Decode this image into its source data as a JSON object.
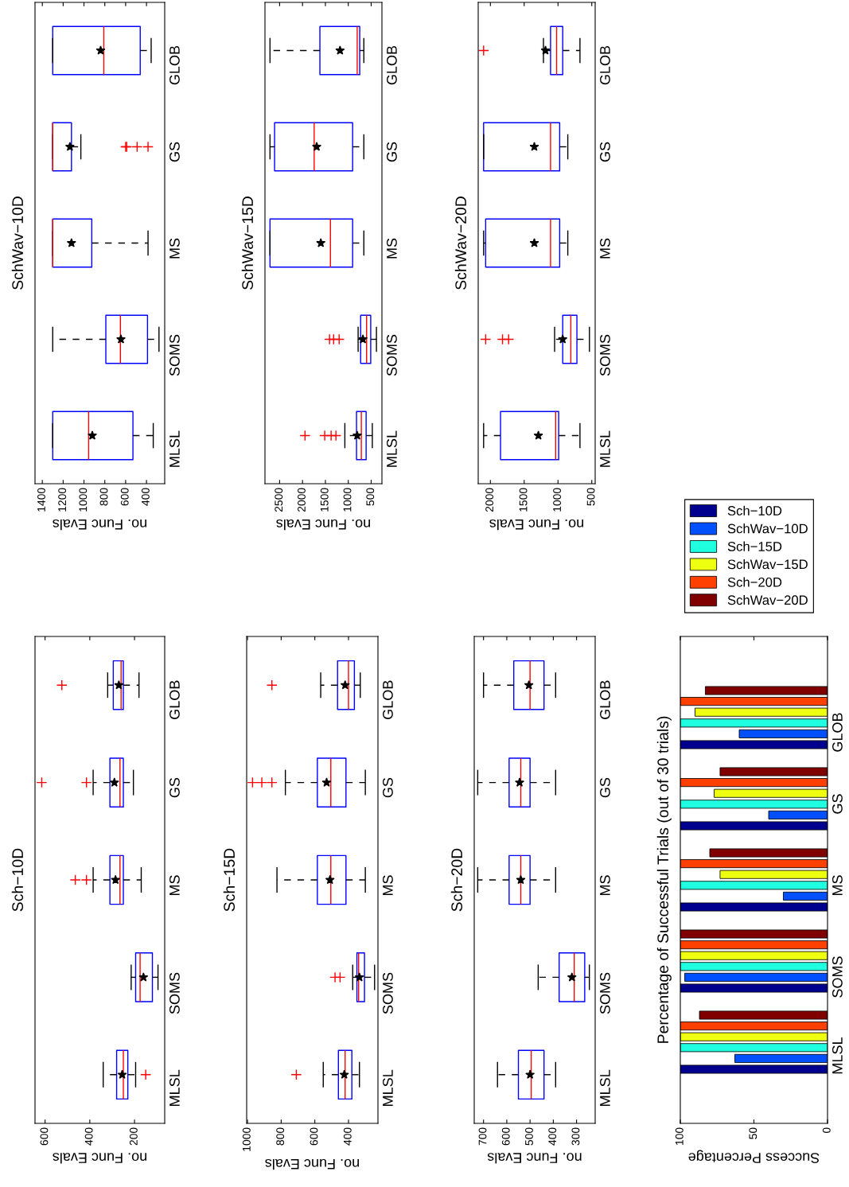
{
  "chart_data": [
    {
      "type": "box",
      "title": "Sch−10D",
      "xlabel": "no. Func Evals",
      "orientation": "horizontal",
      "categories": [
        "GLOB",
        "GS",
        "MS",
        "SOMS",
        "MLSL"
      ],
      "xlim": [
        645,
        65
      ],
      "xticks": [
        600,
        400,
        200
      ],
      "boxes": [
        {
          "low": 180,
          "q1": 250,
          "median": 260,
          "q3": 295,
          "high": 320,
          "mean": 270,
          "outliers": [
            525
          ]
        },
        {
          "low": 205,
          "q1": 250,
          "median": 265,
          "q3": 310,
          "high": 385,
          "mean": 290,
          "outliers": [
            415,
            615
          ]
        },
        {
          "low": 170,
          "q1": 250,
          "median": 265,
          "q3": 310,
          "high": 385,
          "mean": 285,
          "outliers": [
            415,
            465
          ]
        },
        {
          "low": 95,
          "q1": 120,
          "median": 175,
          "q3": 195,
          "high": 215,
          "mean": 160
        },
        {
          "low": 195,
          "q1": 230,
          "median": 250,
          "q3": 280,
          "high": 340,
          "mean": 255,
          "outliers": [
            150
          ]
        }
      ]
    },
    {
      "type": "box",
      "title": "Sch−15D",
      "xlabel": "no. Func Evals",
      "orientation": "horizontal",
      "categories": [
        "GLOB",
        "GS",
        "MS",
        "SOMS",
        "MLSL"
      ],
      "xlim": [
        1005,
        225
      ],
      "xticks": [
        1000,
        800,
        600,
        400
      ],
      "boxes": [
        {
          "low": 330,
          "q1": 365,
          "median": 400,
          "q3": 465,
          "high": 565,
          "mean": 420,
          "outliers": [
            855
          ]
        },
        {
          "low": 300,
          "q1": 415,
          "median": 505,
          "q3": 585,
          "high": 775,
          "mean": 530,
          "outliers": [
            855,
            915,
            970
          ]
        },
        {
          "low": 300,
          "q1": 415,
          "median": 505,
          "q3": 585,
          "high": 825,
          "mean": 510
        },
        {
          "low": 245,
          "q1": 305,
          "median": 340,
          "q3": 350,
          "high": 375,
          "mean": 335,
          "outliers": [
            450,
            480
          ]
        },
        {
          "low": 335,
          "q1": 380,
          "median": 420,
          "q3": 460,
          "high": 550,
          "mean": 425,
          "outliers": [
            710
          ]
        }
      ]
    },
    {
      "type": "box",
      "title": "Sch−20D",
      "xlabel": "no. Func Evals",
      "orientation": "horizontal",
      "categories": [
        "GLOB",
        "GS",
        "MS",
        "SOMS",
        "MLSL"
      ],
      "xlim": [
        740,
        220
      ],
      "xticks": [
        700,
        600,
        500,
        400,
        300
      ],
      "boxes": [
        {
          "low": 390,
          "q1": 440,
          "median": 500,
          "q3": 570,
          "high": 700,
          "mean": 505
        },
        {
          "low": 390,
          "q1": 500,
          "median": 540,
          "q3": 590,
          "high": 725,
          "mean": 545
        },
        {
          "low": 390,
          "q1": 500,
          "median": 540,
          "q3": 590,
          "high": 725,
          "mean": 540
        },
        {
          "low": 245,
          "q1": 265,
          "median": 310,
          "q3": 375,
          "high": 465,
          "mean": 320
        },
        {
          "low": 390,
          "q1": 440,
          "median": 495,
          "q3": 550,
          "high": 640,
          "mean": 500
        }
      ]
    },
    {
      "type": "box",
      "title": "SchWav−10D",
      "xlabel": "no. Func Evals",
      "orientation": "horizontal",
      "categories": [
        "GLOB",
        "GS",
        "MS",
        "SOMS",
        "MLSL"
      ],
      "xlim": [
        1470,
        225
      ],
      "xticks": [
        1400,
        1200,
        1000,
        800,
        600,
        400
      ],
      "boxes": [
        {
          "low": 355,
          "q1": 460,
          "median": 810,
          "q3": 1300,
          "high": 1300,
          "mean": 840
        },
        {
          "low": 1030,
          "q1": 1120,
          "median": 1300,
          "q3": 1300,
          "high": 1300,
          "mean": 1135,
          "outliers": [
            385,
            490,
            590,
            600
          ]
        },
        {
          "low": 385,
          "q1": 925,
          "median": 1300,
          "q3": 1300,
          "high": 1300,
          "mean": 1120
        },
        {
          "low": 280,
          "q1": 390,
          "median": 650,
          "q3": 790,
          "high": 1300,
          "mean": 645
        },
        {
          "low": 335,
          "q1": 530,
          "median": 955,
          "q3": 1300,
          "high": 1300,
          "mean": 920
        }
      ]
    },
    {
      "type": "box",
      "title": "SchWav−15D",
      "xlabel": "no. Func Evals",
      "orientation": "horizontal",
      "categories": [
        "GLOB",
        "GS",
        "MS",
        "SOMS",
        "MLSL"
      ],
      "xlim": [
        2820,
        265
      ],
      "xticks": [
        2500,
        2000,
        1500,
        1000,
        500
      ],
      "boxes": [
        {
          "low": 660,
          "q1": 750,
          "median": 805,
          "q3": 1620,
          "high": 2710,
          "mean": 1180
        },
        {
          "low": 660,
          "q1": 905,
          "median": 1745,
          "q3": 2610,
          "high": 2710,
          "mean": 1690
        },
        {
          "low": 660,
          "q1": 905,
          "median": 1390,
          "q3": 2710,
          "high": 2710,
          "mean": 1600
        },
        {
          "low": 385,
          "q1": 510,
          "median": 600,
          "q3": 730,
          "high": 785,
          "mean": 680,
          "outliers": [
            1200,
            1320,
            1410
          ]
        },
        {
          "low": 475,
          "q1": 610,
          "median": 715,
          "q3": 820,
          "high": 1075,
          "mean": 805,
          "outliers": [
            1270,
            1375,
            1515,
            1945
          ]
        }
      ]
    },
    {
      "type": "box",
      "title": "SchWav−20D",
      "xlabel": "no. Func Evals",
      "orientation": "horizontal",
      "categories": [
        "GLOB",
        "GS",
        "MS",
        "SOMS",
        "MLSL"
      ],
      "xlim": [
        2180,
        450
      ],
      "xticks": [
        2000,
        1500,
        1000,
        500
      ],
      "boxes": [
        {
          "low": 675,
          "q1": 930,
          "median": 1020,
          "q3": 1110,
          "high": 1215,
          "mean": 1185,
          "outliers": [
            2100
          ]
        },
        {
          "low": 855,
          "q1": 975,
          "median": 1110,
          "q3": 2100,
          "high": 2100,
          "mean": 1350
        },
        {
          "low": 855,
          "q1": 975,
          "median": 1110,
          "q3": 2070,
          "high": 2100,
          "mean": 1350
        },
        {
          "low": 535,
          "q1": 720,
          "median": 810,
          "q3": 930,
          "high": 1050,
          "mean": 930,
          "outliers": [
            1730,
            1820,
            2070
          ]
        },
        {
          "low": 675,
          "q1": 990,
          "median": 1035,
          "q3": 1850,
          "high": 2100,
          "mean": 1290
        }
      ]
    },
    {
      "type": "bar",
      "title": "Percentage of Successful Trials (out of 30 trials)",
      "xlabel": "Success Percentage",
      "orientation": "horizontal",
      "categories": [
        "GLOB",
        "GS",
        "MS",
        "SOMS",
        "MLSL"
      ],
      "xlim": [
        100,
        0
      ],
      "xticks": [
        0,
        50,
        100
      ],
      "legend": "top",
      "series": [
        {
          "name": "Sch−10D",
          "color": "#00008f",
          "values": [
            100,
            100,
            100,
            100,
            100
          ]
        },
        {
          "name": "SchWav−10D",
          "color": "#0050ff",
          "values": [
            60,
            40,
            30,
            97,
            63
          ]
        },
        {
          "name": "Sch−15D",
          "color": "#20ffdf",
          "values": [
            100,
            100,
            100,
            100,
            100
          ]
        },
        {
          "name": "SchWav−15D",
          "color": "#efff10",
          "values": [
            90,
            77,
            73,
            100,
            100
          ]
        },
        {
          "name": "Sch−20D",
          "color": "#ff4000",
          "values": [
            100,
            100,
            100,
            100,
            100
          ]
        },
        {
          "name": "SchWav−20D",
          "color": "#800000",
          "values": [
            83,
            73,
            80,
            100,
            87
          ]
        }
      ]
    }
  ]
}
